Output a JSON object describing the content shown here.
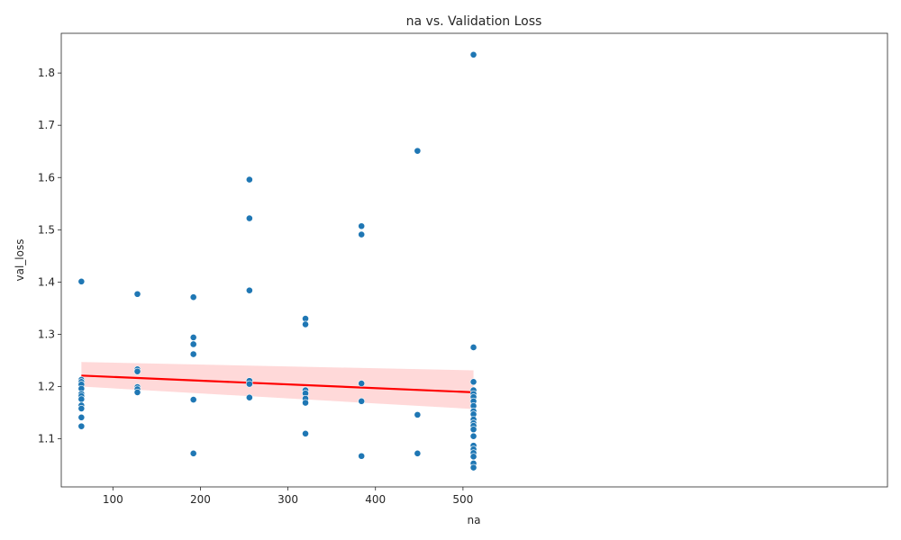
{
  "chart_data": {
    "type": "scatter",
    "title": "na vs. Validation Loss",
    "xlabel": "na",
    "ylabel": "val_loss",
    "xlim": [
      41,
      985
    ],
    "ylim": [
      1.008,
      1.876
    ],
    "xticks": [
      100,
      200,
      300,
      400,
      500
    ],
    "yticks": [
      1.1,
      1.2,
      1.3,
      1.4,
      1.5,
      1.6,
      1.7,
      1.8
    ],
    "ytick_labels": [
      "1.1",
      "1.2",
      "1.3",
      "1.4",
      "1.5",
      "1.6",
      "1.7",
      "1.8"
    ],
    "grid": false,
    "point_color": "#1f77b4",
    "regression": {
      "x": [
        64,
        512
      ],
      "y": [
        1.221,
        1.189
      ],
      "ci_upper": [
        1.247,
        1.231
      ],
      "ci_lower": [
        1.2,
        1.157
      ],
      "line_color": "#ff0000",
      "band_color": "#ffcccc"
    },
    "points": [
      {
        "x": 64,
        "y": 1.401
      },
      {
        "x": 64,
        "y": 1.213
      },
      {
        "x": 64,
        "y": 1.209
      },
      {
        "x": 64,
        "y": 1.204
      },
      {
        "x": 64,
        "y": 1.196
      },
      {
        "x": 64,
        "y": 1.186
      },
      {
        "x": 64,
        "y": 1.182
      },
      {
        "x": 64,
        "y": 1.176
      },
      {
        "x": 64,
        "y": 1.164
      },
      {
        "x": 64,
        "y": 1.158
      },
      {
        "x": 64,
        "y": 1.141
      },
      {
        "x": 64,
        "y": 1.124
      },
      {
        "x": 128,
        "y": 1.377
      },
      {
        "x": 128,
        "y": 1.233
      },
      {
        "x": 128,
        "y": 1.229
      },
      {
        "x": 128,
        "y": 1.199
      },
      {
        "x": 128,
        "y": 1.195
      },
      {
        "x": 128,
        "y": 1.189
      },
      {
        "x": 192,
        "y": 1.371
      },
      {
        "x": 192,
        "y": 1.294
      },
      {
        "x": 192,
        "y": 1.281
      },
      {
        "x": 192,
        "y": 1.262
      },
      {
        "x": 192,
        "y": 1.175
      },
      {
        "x": 192,
        "y": 1.072
      },
      {
        "x": 256,
        "y": 1.596
      },
      {
        "x": 256,
        "y": 1.522
      },
      {
        "x": 256,
        "y": 1.384
      },
      {
        "x": 256,
        "y": 1.211
      },
      {
        "x": 256,
        "y": 1.205
      },
      {
        "x": 256,
        "y": 1.179
      },
      {
        "x": 320,
        "y": 1.33
      },
      {
        "x": 320,
        "y": 1.319
      },
      {
        "x": 320,
        "y": 1.193
      },
      {
        "x": 320,
        "y": 1.187
      },
      {
        "x": 320,
        "y": 1.177
      },
      {
        "x": 320,
        "y": 1.169
      },
      {
        "x": 320,
        "y": 1.11
      },
      {
        "x": 384,
        "y": 1.507
      },
      {
        "x": 384,
        "y": 1.491
      },
      {
        "x": 384,
        "y": 1.206
      },
      {
        "x": 384,
        "y": 1.172
      },
      {
        "x": 384,
        "y": 1.067
      },
      {
        "x": 448,
        "y": 1.651
      },
      {
        "x": 448,
        "y": 1.146
      },
      {
        "x": 448,
        "y": 1.072
      },
      {
        "x": 512,
        "y": 1.835
      },
      {
        "x": 512,
        "y": 1.275
      },
      {
        "x": 512,
        "y": 1.209
      },
      {
        "x": 512,
        "y": 1.193
      },
      {
        "x": 512,
        "y": 1.186
      },
      {
        "x": 512,
        "y": 1.18
      },
      {
        "x": 512,
        "y": 1.172
      },
      {
        "x": 512,
        "y": 1.163
      },
      {
        "x": 512,
        "y": 1.153
      },
      {
        "x": 512,
        "y": 1.147
      },
      {
        "x": 512,
        "y": 1.137
      },
      {
        "x": 512,
        "y": 1.13
      },
      {
        "x": 512,
        "y": 1.125
      },
      {
        "x": 512,
        "y": 1.118
      },
      {
        "x": 512,
        "y": 1.105
      },
      {
        "x": 512,
        "y": 1.087
      },
      {
        "x": 512,
        "y": 1.08
      },
      {
        "x": 512,
        "y": 1.073
      },
      {
        "x": 512,
        "y": 1.066
      },
      {
        "x": 512,
        "y": 1.053
      },
      {
        "x": 512,
        "y": 1.045
      }
    ]
  }
}
